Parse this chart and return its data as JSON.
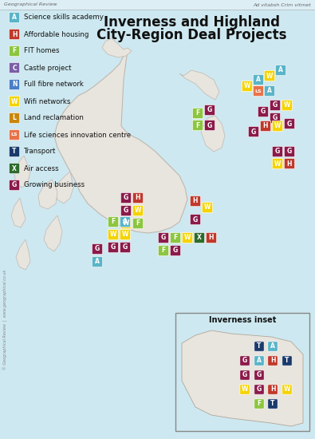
{
  "title_line1": "Inverness and Highland",
  "title_line2": "City-Region Deal Projects",
  "header_left": "Geographical Review",
  "header_right": "Ad vitabsh Crim vitmet",
  "bg_color": "#cde8f0",
  "map_land_color": "#e8e4de",
  "map_border_color": "#c0b8b0",
  "icon_colors": {
    "science": "#5ab4c8",
    "housing": "#c0392b",
    "fit": "#8cc63f",
    "castle": "#7b5ea7",
    "fibre": "#4a7ec7",
    "wifi": "#f5d300",
    "land": "#c8860a",
    "life": "#e8734a",
    "transport": "#1a3a6b",
    "air": "#2d6b2d",
    "business": "#8b1a4a"
  },
  "legend_items": [
    {
      "label": "Science skills academy",
      "color": "#5ab4c8",
      "sym": "A"
    },
    {
      "label": "Affordable housing",
      "color": "#c0392b",
      "sym": "H"
    },
    {
      "label": "FIT homes",
      "color": "#8cc63f",
      "sym": "F"
    },
    {
      "label": "Castle project",
      "color": "#7b5ea7",
      "sym": "C"
    },
    {
      "label": "Full fibre network",
      "color": "#4a7ec7",
      "sym": "N"
    },
    {
      "label": "Wifi networks",
      "color": "#f5d300",
      "sym": "W"
    },
    {
      "label": "Land reclamation",
      "color": "#c8860a",
      "sym": "L"
    },
    {
      "label": "Life sciences innovation centre",
      "color": "#e8734a",
      "sym": "LS"
    },
    {
      "label": "Transport",
      "color": "#1a3a6b",
      "sym": "T"
    },
    {
      "label": "Air access",
      "color": "#2d6b2d",
      "sym": "X"
    },
    {
      "label": "Growing business",
      "color": "#8b1a4a",
      "sym": "G"
    }
  ],
  "inset_label": "Inverness inset"
}
